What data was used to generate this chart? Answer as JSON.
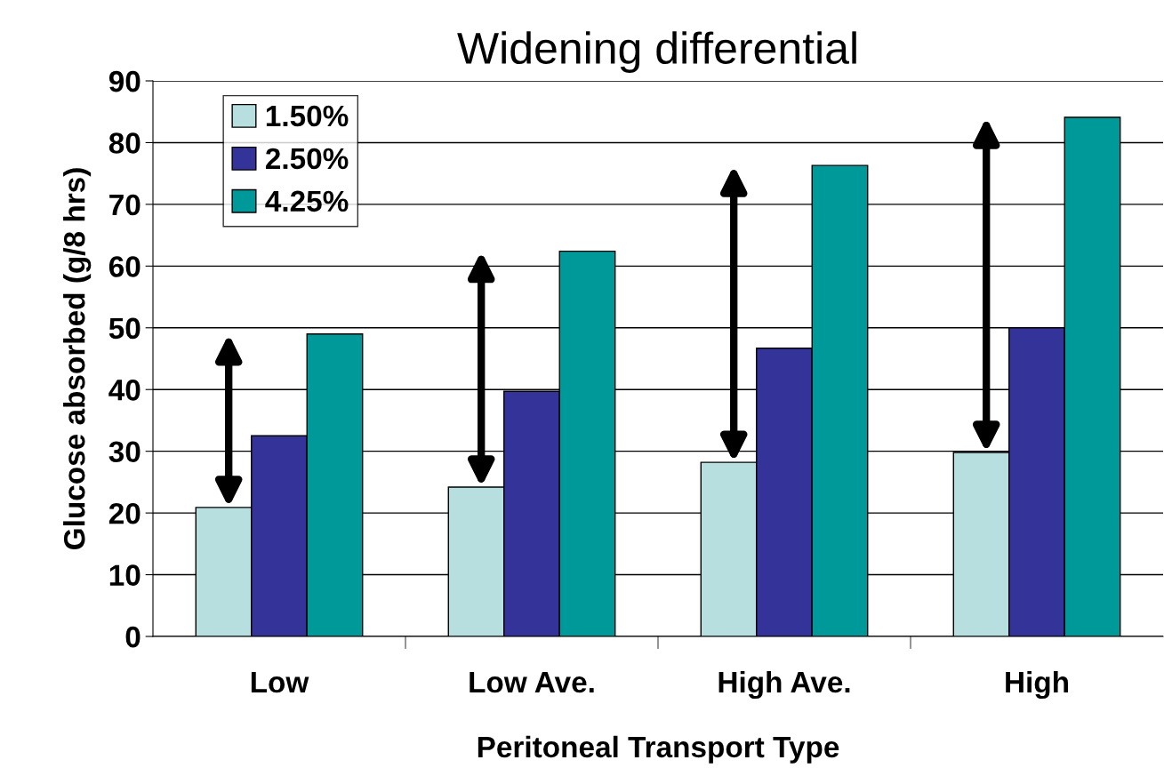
{
  "chart_data": {
    "type": "bar",
    "title": "Widening differential",
    "xlabel": "Peritoneal Transport Type",
    "ylabel": "Glucose absorbed (g/8 hrs)",
    "categories": [
      "Low",
      "Low Ave.",
      "High Ave.",
      "High"
    ],
    "series": [
      {
        "name": "1.50%",
        "color": "#b8dfe0",
        "values": [
          20.9,
          24.2,
          28.2,
          29.8
        ]
      },
      {
        "name": "2.50%",
        "color": "#333399",
        "values": [
          32.5,
          39.7,
          46.7,
          50.0
        ]
      },
      {
        "name": "4.25%",
        "color": "#009999",
        "values": [
          49.0,
          62.4,
          76.3,
          84.1
        ]
      }
    ],
    "ylim": [
      0,
      90
    ],
    "yticks": [
      0,
      10,
      20,
      30,
      40,
      50,
      60,
      70,
      80,
      90
    ],
    "grid": "y",
    "legend": "top left"
  }
}
